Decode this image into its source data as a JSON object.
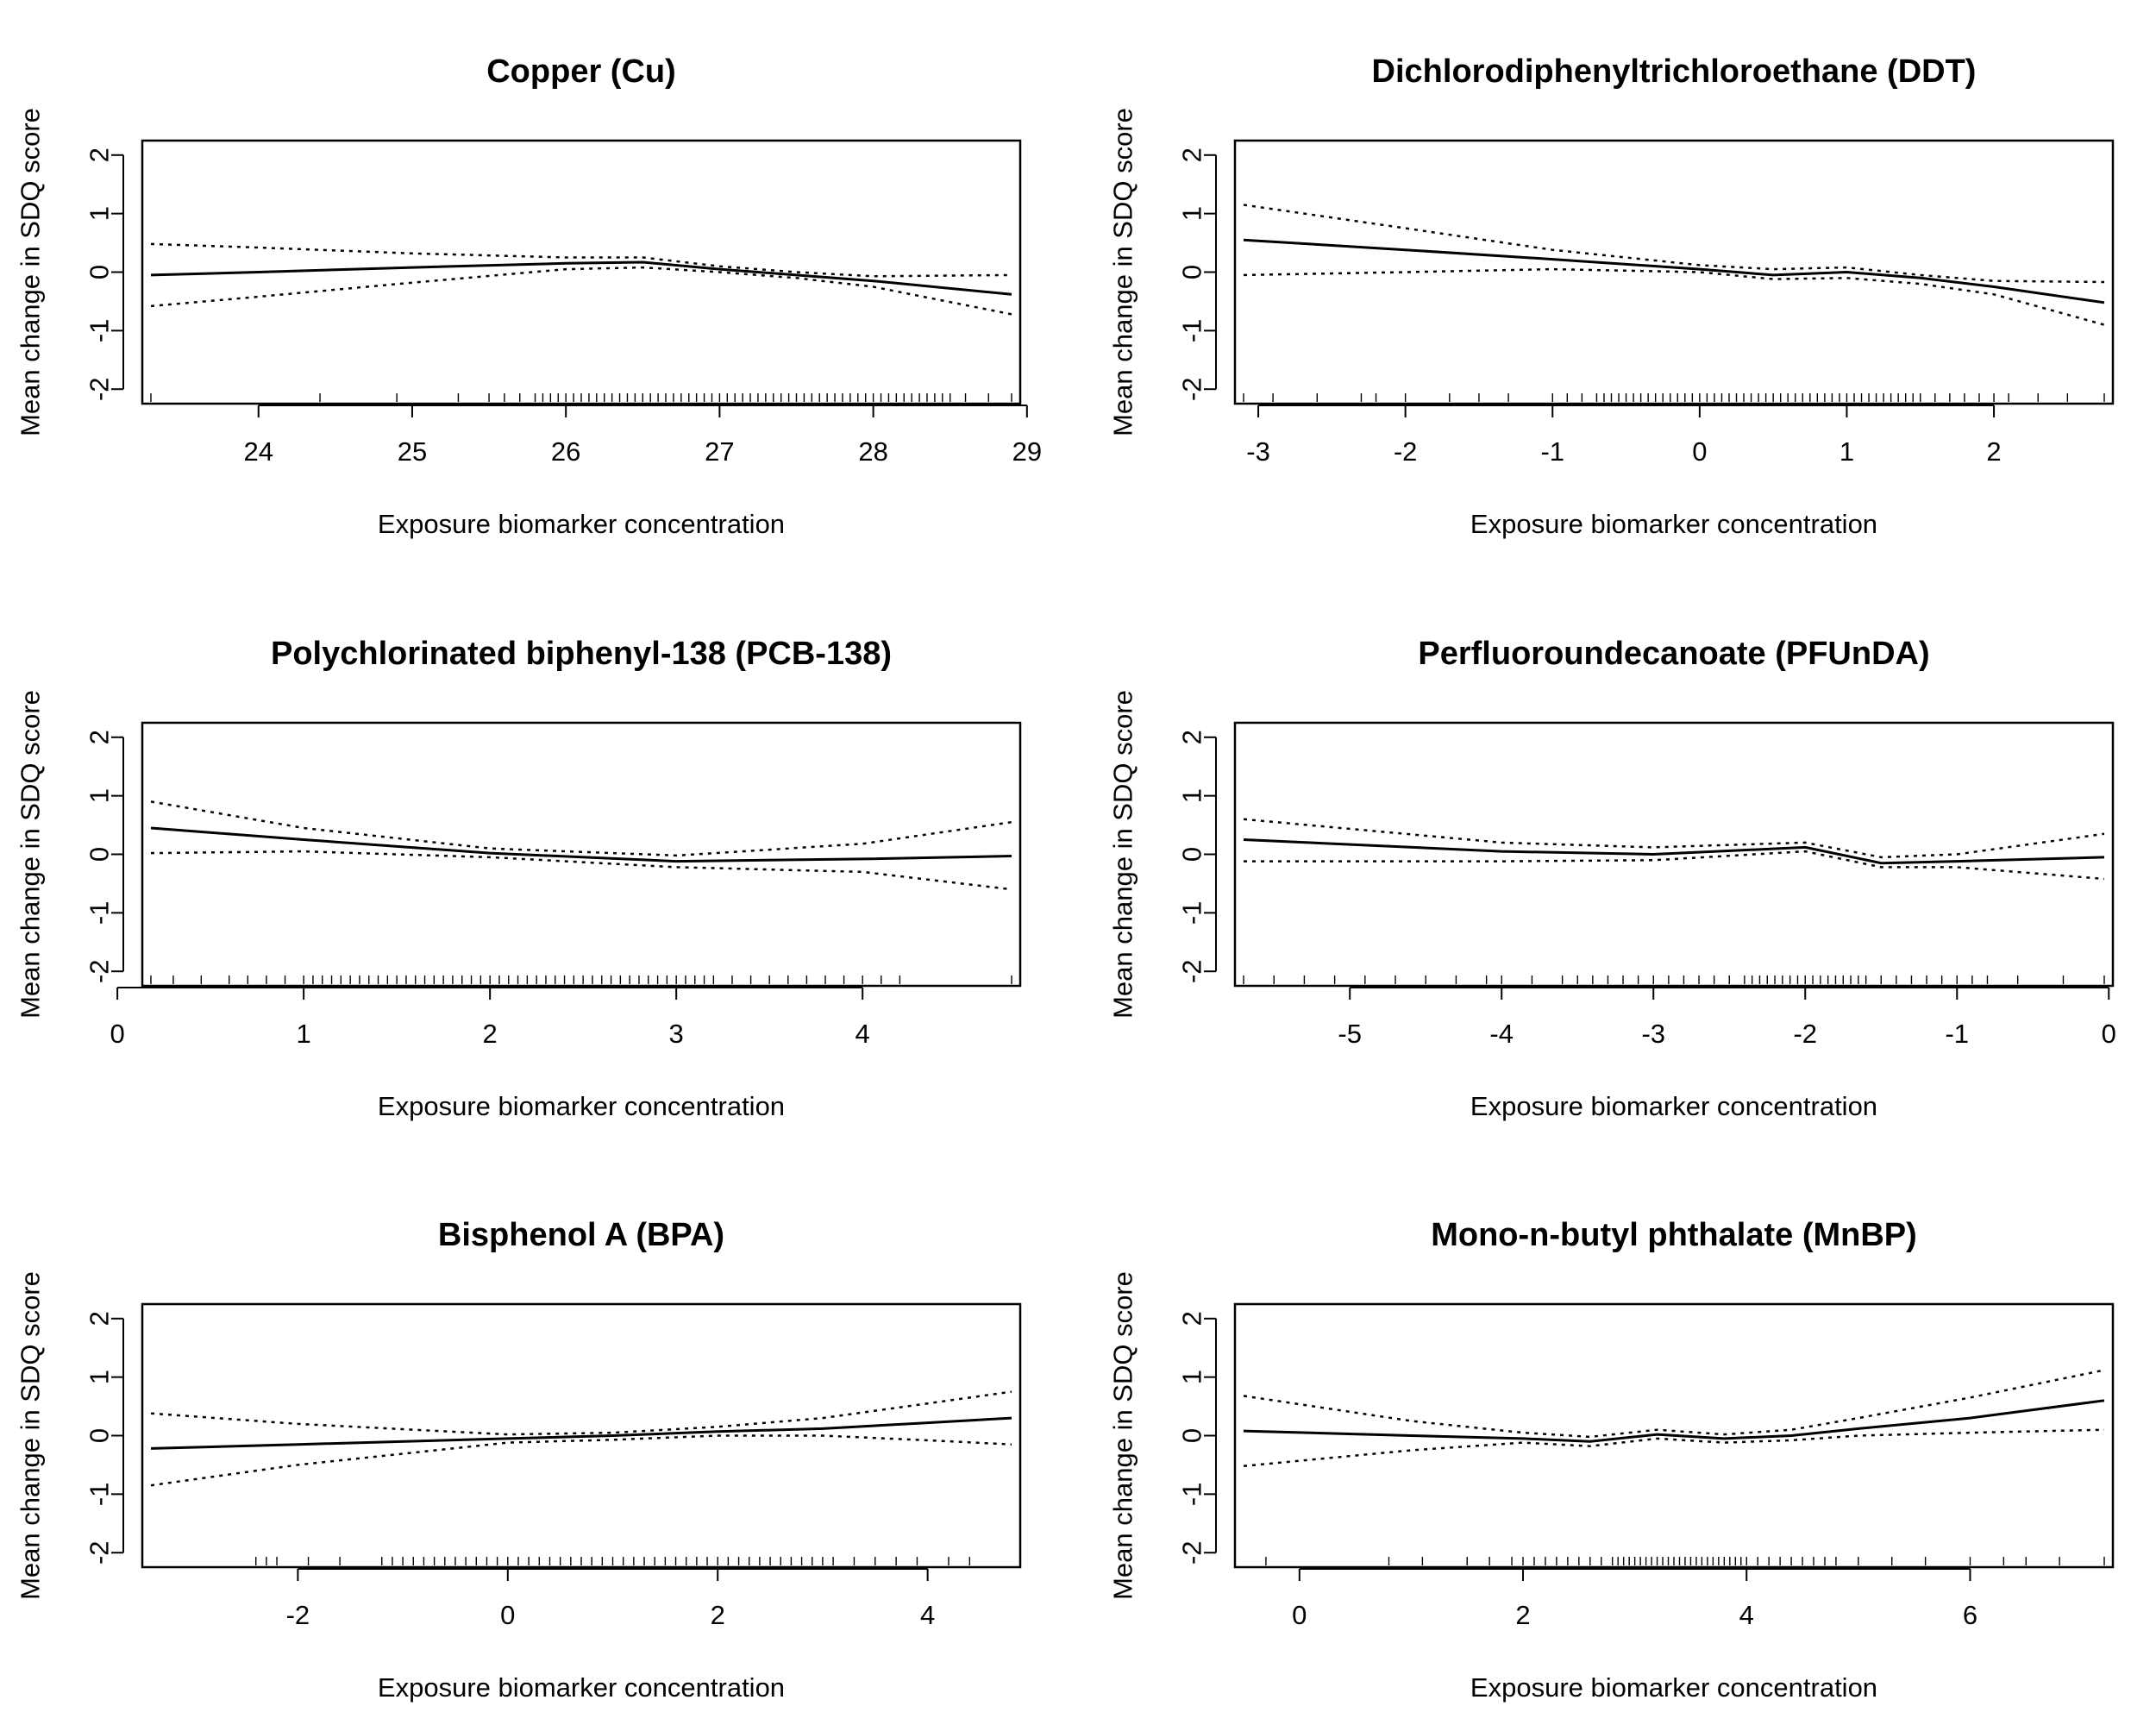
{
  "chart_data": [
    {
      "type": "line",
      "title": "Copper (Cu)",
      "xlabel": "Exposure biomarker concentration",
      "ylabel": "Mean change in SDQ score",
      "xlim": [
        23.3,
        28.9
      ],
      "ylim": [
        -2.1,
        2.1
      ],
      "xticks": [
        "24",
        "25",
        "26",
        "27",
        "28",
        "29"
      ],
      "yticks": [
        "-2",
        "-1",
        "0",
        "1",
        "2"
      ],
      "series": [
        {
          "role": "estimate",
          "style": "solid",
          "x": [
            23.3,
            24.0,
            25.0,
            26.0,
            26.5,
            27.0,
            27.5,
            28.0,
            28.9
          ],
          "y": [
            -0.05,
            0.0,
            0.08,
            0.15,
            0.17,
            0.05,
            -0.05,
            -0.15,
            -0.38
          ]
        },
        {
          "role": "upper",
          "style": "dotted",
          "x": [
            23.3,
            24.0,
            25.0,
            26.0,
            26.5,
            27.0,
            27.5,
            28.0,
            28.9
          ],
          "y": [
            0.48,
            0.42,
            0.32,
            0.25,
            0.25,
            0.1,
            0.0,
            -0.07,
            -0.05
          ]
        },
        {
          "role": "lower",
          "style": "dotted",
          "x": [
            23.3,
            24.0,
            25.0,
            26.0,
            26.5,
            27.0,
            27.5,
            28.0,
            28.9
          ],
          "y": [
            -0.58,
            -0.42,
            -0.18,
            0.05,
            0.08,
            0.0,
            -0.1,
            -0.25,
            -0.72
          ]
        }
      ],
      "rug": [
        23.3,
        24.4,
        24.9,
        25.3,
        25.5,
        25.6,
        25.7,
        25.8,
        25.85,
        25.9,
        25.95,
        26.0,
        26.05,
        26.1,
        26.15,
        26.2,
        26.25,
        26.3,
        26.35,
        26.4,
        26.45,
        26.5,
        26.55,
        26.6,
        26.65,
        26.7,
        26.75,
        26.8,
        26.85,
        26.9,
        26.95,
        27.0,
        27.05,
        27.1,
        27.15,
        27.2,
        27.25,
        27.3,
        27.35,
        27.4,
        27.45,
        27.5,
        27.55,
        27.6,
        27.65,
        27.7,
        27.75,
        27.8,
        27.85,
        27.9,
        27.95,
        28.0,
        28.05,
        28.1,
        28.15,
        28.2,
        28.25,
        28.3,
        28.35,
        28.4,
        28.45,
        28.5,
        28.6,
        28.75,
        28.9
      ]
    },
    {
      "type": "line",
      "title": "Dichlorodiphenyltrichloroethane (DDT)",
      "xlabel": "Exposure biomarker concentration",
      "ylabel": "Mean change in SDQ score",
      "xlim": [
        -3.1,
        2.75
      ],
      "ylim": [
        -2.1,
        2.1
      ],
      "xticks": [
        "-3",
        "-2",
        "-1",
        "0",
        "1",
        "2"
      ],
      "yticks": [
        "-2",
        "-1",
        "0",
        "1",
        "2"
      ],
      "series": [
        {
          "role": "estimate",
          "style": "solid",
          "x": [
            -3.1,
            -2.0,
            -1.0,
            0.0,
            0.5,
            1.0,
            1.5,
            2.0,
            2.75
          ],
          "y": [
            0.55,
            0.38,
            0.22,
            0.05,
            -0.05,
            0.0,
            -0.1,
            -0.25,
            -0.52
          ]
        },
        {
          "role": "upper",
          "style": "dotted",
          "x": [
            -3.1,
            -2.0,
            -1.0,
            0.0,
            0.5,
            1.0,
            1.5,
            2.0,
            2.75
          ],
          "y": [
            1.15,
            0.75,
            0.38,
            0.12,
            0.05,
            0.08,
            -0.05,
            -0.15,
            -0.17
          ]
        },
        {
          "role": "lower",
          "style": "dotted",
          "x": [
            -3.1,
            -2.0,
            -1.0,
            0.0,
            0.5,
            1.0,
            1.5,
            2.0,
            2.75
          ],
          "y": [
            -0.05,
            0.0,
            0.05,
            0.0,
            -0.12,
            -0.1,
            -0.2,
            -0.38,
            -0.9
          ]
        }
      ],
      "rug": [
        -3.1,
        -2.9,
        -2.6,
        -2.3,
        -2.2,
        -2.0,
        -1.7,
        -1.5,
        -1.3,
        -1.0,
        -0.9,
        -0.8,
        -0.7,
        -0.65,
        -0.6,
        -0.55,
        -0.5,
        -0.45,
        -0.4,
        -0.35,
        -0.3,
        -0.25,
        -0.2,
        -0.15,
        -0.1,
        -0.05,
        0.0,
        0.05,
        0.1,
        0.15,
        0.2,
        0.25,
        0.3,
        0.35,
        0.4,
        0.45,
        0.5,
        0.55,
        0.6,
        0.65,
        0.7,
        0.75,
        0.8,
        0.85,
        0.9,
        0.95,
        1.0,
        1.05,
        1.1,
        1.15,
        1.2,
        1.25,
        1.3,
        1.35,
        1.4,
        1.45,
        1.5,
        1.6,
        1.7,
        1.8,
        1.9,
        2.0,
        2.1,
        2.3,
        2.5,
        2.75
      ]
    },
    {
      "type": "line",
      "title": "Polychlorinated biphenyl-138 (PCB-138)",
      "xlabel": "Exposure biomarker concentration",
      "ylabel": "Mean change in SDQ score",
      "xlim": [
        0.18,
        4.8
      ],
      "ylim": [
        -2.1,
        2.1
      ],
      "xticks": [
        "0",
        "1",
        "2",
        "3",
        "4"
      ],
      "yticks": [
        "-2",
        "-1",
        "0",
        "1",
        "2"
      ],
      "series": [
        {
          "role": "estimate",
          "style": "solid",
          "x": [
            0.18,
            1.0,
            2.0,
            3.0,
            4.0,
            4.8
          ],
          "y": [
            0.45,
            0.25,
            0.02,
            -0.12,
            -0.08,
            -0.03
          ]
        },
        {
          "role": "upper",
          "style": "dotted",
          "x": [
            0.18,
            1.0,
            2.0,
            3.0,
            4.0,
            4.8
          ],
          "y": [
            0.9,
            0.45,
            0.1,
            -0.02,
            0.18,
            0.55
          ]
        },
        {
          "role": "lower",
          "style": "dotted",
          "x": [
            0.18,
            1.0,
            2.0,
            3.0,
            4.0,
            4.8
          ],
          "y": [
            0.02,
            0.05,
            -0.05,
            -0.22,
            -0.3,
            -0.6
          ]
        }
      ],
      "rug": [
        0.18,
        0.3,
        0.45,
        0.6,
        0.7,
        0.8,
        0.9,
        1.0,
        1.05,
        1.1,
        1.15,
        1.2,
        1.25,
        1.3,
        1.35,
        1.4,
        1.45,
        1.5,
        1.55,
        1.6,
        1.65,
        1.7,
        1.75,
        1.8,
        1.85,
        1.9,
        1.95,
        2.0,
        2.05,
        2.1,
        2.15,
        2.2,
        2.25,
        2.3,
        2.35,
        2.4,
        2.45,
        2.5,
        2.55,
        2.6,
        2.65,
        2.7,
        2.75,
        2.8,
        2.85,
        2.9,
        2.95,
        3.0,
        3.05,
        3.1,
        3.15,
        3.2,
        3.3,
        3.4,
        3.5,
        3.6,
        3.7,
        3.8,
        3.9,
        4.0,
        4.1,
        4.2,
        4.8
      ]
    },
    {
      "type": "line",
      "title": "Perfluoroundecanoate (PFUnDA)",
      "xlabel": "Exposure biomarker concentration",
      "ylabel": "Mean change in SDQ score",
      "xlim": [
        -5.7,
        -0.03
      ],
      "ylim": [
        -2.1,
        2.1
      ],
      "xticks": [
        "-5",
        "-4",
        "-3",
        "-2",
        "-1",
        "0"
      ],
      "yticks": [
        "-2",
        "-1",
        "0",
        "1",
        "2"
      ],
      "series": [
        {
          "role": "estimate",
          "style": "solid",
          "x": [
            -5.7,
            -4.0,
            -3.0,
            -2.0,
            -1.5,
            -1.0,
            -0.03
          ],
          "y": [
            0.25,
            0.05,
            0.0,
            0.12,
            -0.15,
            -0.12,
            -0.05
          ]
        },
        {
          "role": "upper",
          "style": "dotted",
          "x": [
            -5.7,
            -4.0,
            -3.0,
            -2.0,
            -1.5,
            -1.0,
            -0.03
          ],
          "y": [
            0.6,
            0.2,
            0.12,
            0.2,
            -0.05,
            0.0,
            0.35
          ]
        },
        {
          "role": "lower",
          "style": "dotted",
          "x": [
            -5.7,
            -4.0,
            -3.0,
            -2.0,
            -1.5,
            -1.0,
            -0.03
          ],
          "y": [
            -0.12,
            -0.12,
            -0.1,
            0.05,
            -0.22,
            -0.22,
            -0.42
          ]
        }
      ],
      "rug": [
        -5.7,
        -5.5,
        -5.3,
        -5.1,
        -4.9,
        -4.7,
        -4.5,
        -4.3,
        -4.1,
        -4.0,
        -3.8,
        -3.6,
        -3.5,
        -3.4,
        -3.3,
        -3.2,
        -3.1,
        -3.0,
        -2.9,
        -2.8,
        -2.7,
        -2.6,
        -2.5,
        -2.4,
        -2.35,
        -2.3,
        -2.25,
        -2.2,
        -2.15,
        -2.1,
        -2.05,
        -2.0,
        -1.95,
        -1.9,
        -1.85,
        -1.8,
        -1.75,
        -1.7,
        -1.65,
        -1.6,
        -1.5,
        -1.4,
        -1.3,
        -1.2,
        -1.1,
        -1.0,
        -0.9,
        -0.8,
        -0.6,
        -0.3,
        -0.03
      ]
    },
    {
      "type": "line",
      "title": "Bisphenol A (BPA)",
      "xlabel": "Exposure biomarker concentration",
      "ylabel": "Mean change in SDQ score",
      "xlim": [
        -3.4,
        4.8
      ],
      "ylim": [
        -2.1,
        2.1
      ],
      "xticks": [
        "-2",
        "0",
        "2",
        "4"
      ],
      "yticks": [
        "-2",
        "-1",
        "0",
        "1",
        "2"
      ],
      "series": [
        {
          "role": "estimate",
          "style": "solid",
          "x": [
            -3.4,
            -2.0,
            0.0,
            1.0,
            2.0,
            3.0,
            4.0,
            4.8
          ],
          "y": [
            -0.22,
            -0.15,
            -0.05,
            0.0,
            0.07,
            0.12,
            0.22,
            0.3
          ]
        },
        {
          "role": "upper",
          "style": "dotted",
          "x": [
            -3.4,
            -2.0,
            0.0,
            1.0,
            2.0,
            3.0,
            4.0,
            4.8
          ],
          "y": [
            0.38,
            0.2,
            0.02,
            0.05,
            0.15,
            0.3,
            0.55,
            0.75
          ]
        },
        {
          "role": "lower",
          "style": "dotted",
          "x": [
            -3.4,
            -2.0,
            0.0,
            1.0,
            2.0,
            3.0,
            4.0,
            4.8
          ],
          "y": [
            -0.85,
            -0.5,
            -0.12,
            -0.07,
            0.0,
            0.0,
            -0.08,
            -0.15
          ]
        }
      ],
      "rug": [
        -2.4,
        -2.3,
        -2.2,
        -1.9,
        -1.6,
        -1.2,
        -1.1,
        -1.0,
        -0.9,
        -0.8,
        -0.7,
        -0.6,
        -0.5,
        -0.4,
        -0.3,
        -0.2,
        -0.1,
        0.0,
        0.1,
        0.2,
        0.3,
        0.4,
        0.5,
        0.6,
        0.7,
        0.8,
        0.9,
        1.0,
        1.1,
        1.2,
        1.3,
        1.4,
        1.5,
        1.6,
        1.7,
        1.8,
        1.9,
        2.0,
        2.1,
        2.2,
        2.3,
        2.4,
        2.5,
        2.6,
        2.7,
        2.8,
        2.9,
        3.0,
        3.1,
        3.3,
        3.5,
        3.7,
        3.9,
        4.2,
        4.4
      ]
    },
    {
      "type": "line",
      "title": "Mono-n-butyl phthalate (MnBP)",
      "xlabel": "Exposure biomarker concentration",
      "ylabel": "Mean change in SDQ score",
      "xlim": [
        -0.5,
        7.2
      ],
      "ylim": [
        -2.1,
        2.1
      ],
      "xticks": [
        "0",
        "2",
        "4",
        "6"
      ],
      "yticks": [
        "-2",
        "-1",
        "0",
        "1",
        "2"
      ],
      "series": [
        {
          "role": "estimate",
          "style": "solid",
          "x": [
            -0.5,
            1.0,
            2.0,
            2.6,
            3.2,
            3.8,
            4.4,
            5.0,
            6.0,
            7.2
          ],
          "y": [
            0.08,
            0.0,
            -0.05,
            -0.1,
            0.02,
            -0.05,
            0.0,
            0.12,
            0.3,
            0.6
          ]
        },
        {
          "role": "upper",
          "style": "dotted",
          "x": [
            -0.5,
            1.0,
            2.0,
            2.6,
            3.2,
            3.8,
            4.4,
            5.0,
            6.0,
            7.2
          ],
          "y": [
            0.68,
            0.25,
            0.05,
            -0.02,
            0.1,
            0.02,
            0.1,
            0.3,
            0.65,
            1.12
          ]
        },
        {
          "role": "lower",
          "style": "dotted",
          "x": [
            -0.5,
            1.0,
            2.0,
            2.6,
            3.2,
            3.8,
            4.4,
            5.0,
            6.0,
            7.2
          ],
          "y": [
            -0.52,
            -0.25,
            -0.12,
            -0.18,
            -0.05,
            -0.12,
            -0.08,
            0.0,
            0.05,
            0.1
          ]
        }
      ],
      "rug": [
        -0.3,
        0.8,
        1.1,
        1.5,
        1.7,
        1.9,
        2.0,
        2.1,
        2.2,
        2.3,
        2.4,
        2.5,
        2.6,
        2.7,
        2.8,
        2.85,
        2.9,
        2.95,
        3.0,
        3.05,
        3.1,
        3.15,
        3.2,
        3.25,
        3.3,
        3.35,
        3.4,
        3.45,
        3.5,
        3.55,
        3.6,
        3.65,
        3.7,
        3.75,
        3.8,
        3.85,
        3.9,
        3.95,
        4.0,
        4.1,
        4.2,
        4.3,
        4.4,
        4.5,
        4.6,
        4.7,
        4.8,
        5.0,
        5.3,
        5.6,
        6.0,
        6.3,
        6.5,
        6.8,
        7.2
      ]
    }
  ]
}
